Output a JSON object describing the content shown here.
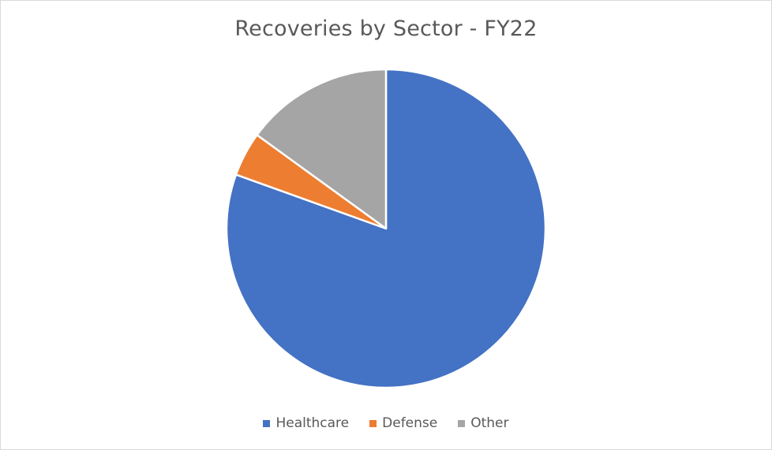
{
  "chart_data": {
    "type": "pie",
    "title": "Recoveries by Sector - FY22",
    "start_angle_deg": 0,
    "direction": "clockwise",
    "slices": [
      {
        "label": "Healthcare",
        "value": 80.5,
        "color": "#4472C4"
      },
      {
        "label": "Defense",
        "value": 4.5,
        "color": "#ED7D31"
      },
      {
        "label": "Other",
        "value": 15.0,
        "color": "#A5A5A5"
      }
    ],
    "legend_position": "bottom"
  }
}
